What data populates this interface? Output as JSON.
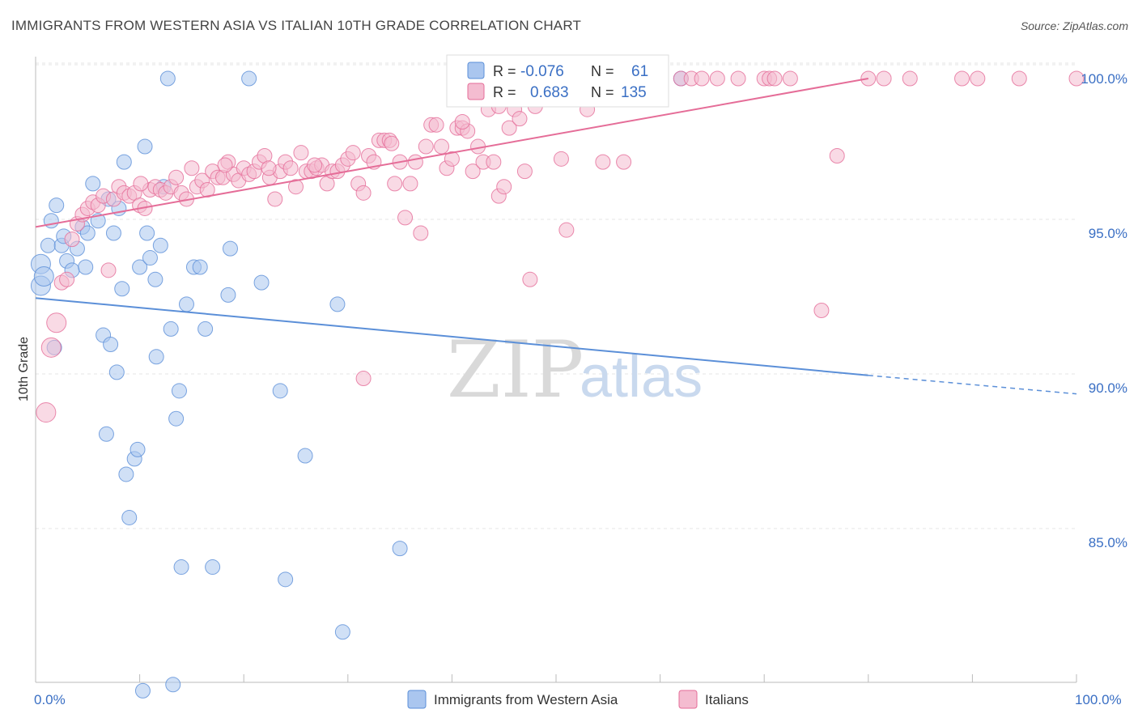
{
  "header": {
    "title": "IMMIGRANTS FROM WESTERN ASIA VS ITALIAN 10TH GRADE CORRELATION CHART",
    "source": "Source: ZipAtlas.com"
  },
  "watermark": {
    "zip": "ZIP",
    "atlas": "atlas"
  },
  "legend": {
    "r_label": "R =",
    "n_label": "N =",
    "series": [
      {
        "r": "-0.076",
        "n": "61"
      },
      {
        "r": "0.683",
        "n": "135"
      }
    ]
  },
  "chart_data": {
    "type": "scatter",
    "title": "IMMIGRANTS FROM WESTERN ASIA VS ITALIAN 10TH GRADE CORRELATION CHART",
    "xlabel": "",
    "ylabel": "10th Grade",
    "xlim": [
      0,
      100
    ],
    "ylim": [
      80.0,
      100.5
    ],
    "x_tick_labels": [
      "0.0%",
      "100.0%"
    ],
    "y_ticks": [
      85,
      90,
      95,
      100
    ],
    "y_tick_labels": [
      "85.0%",
      "90.0%",
      "95.0%",
      "100.0%"
    ],
    "grid": true,
    "legend_position": "top-center",
    "series": [
      {
        "name": "Immigrants from Western Asia",
        "color": "#5b8fd8",
        "fill": "#aac6ef",
        "r": -0.076,
        "n": 61,
        "trend": {
          "x0": 0,
          "y0": 92.9,
          "x1": 80,
          "y1": 90.4,
          "dash_to_x": 100,
          "dash_to_y": 89.8
        },
        "points": [
          [
            0.5,
            94.0
          ],
          [
            0.5,
            93.3
          ],
          [
            0.8,
            93.6
          ],
          [
            1.2,
            94.6
          ],
          [
            1.5,
            95.4
          ],
          [
            1.8,
            91.3
          ],
          [
            2.0,
            95.9
          ],
          [
            2.5,
            94.6
          ],
          [
            2.7,
            94.9
          ],
          [
            3.0,
            94.1
          ],
          [
            3.5,
            93.8
          ],
          [
            4.0,
            94.5
          ],
          [
            4.5,
            95.2
          ],
          [
            4.8,
            93.9
          ],
          [
            5.0,
            95.0
          ],
          [
            5.5,
            96.6
          ],
          [
            6.0,
            95.4
          ],
          [
            6.5,
            91.7
          ],
          [
            7.0,
            96.1
          ],
          [
            7.2,
            91.4
          ],
          [
            7.5,
            95.0
          ],
          [
            7.8,
            90.5
          ],
          [
            8.0,
            95.8
          ],
          [
            8.3,
            93.2
          ],
          [
            8.5,
            97.3
          ],
          [
            8.7,
            87.2
          ],
          [
            9.0,
            85.8
          ],
          [
            9.5,
            87.7
          ],
          [
            10.0,
            93.9
          ],
          [
            10.5,
            97.8
          ],
          [
            10.7,
            95.0
          ],
          [
            11.0,
            94.2
          ],
          [
            11.5,
            93.5
          ],
          [
            12.0,
            94.6
          ],
          [
            12.3,
            96.5
          ],
          [
            12.7,
            100.0
          ],
          [
            13.0,
            91.9
          ],
          [
            13.5,
            89.0
          ],
          [
            13.8,
            89.9
          ],
          [
            14.0,
            84.2
          ],
          [
            14.5,
            92.7
          ],
          [
            15.2,
            93.9
          ],
          [
            15.8,
            93.9
          ],
          [
            16.3,
            91.9
          ],
          [
            17.0,
            84.2
          ],
          [
            18.5,
            93.0
          ],
          [
            18.7,
            94.5
          ],
          [
            20.5,
            100.0
          ],
          [
            21.7,
            93.4
          ],
          [
            23.5,
            89.9
          ],
          [
            24.0,
            83.8
          ],
          [
            25.9,
            87.8
          ],
          [
            29.0,
            92.7
          ],
          [
            29.5,
            82.1
          ],
          [
            35.0,
            84.8
          ],
          [
            62.0,
            100.0
          ],
          [
            10.3,
            80.2
          ],
          [
            13.2,
            80.4
          ],
          [
            9.8,
            88.0
          ],
          [
            6.8,
            88.5
          ],
          [
            11.6,
            91.0
          ]
        ]
      },
      {
        "name": "Italians",
        "color": "#e56d98",
        "fill": "#f4bcd0",
        "r": 0.683,
        "n": 135,
        "trend": {
          "x0": 0,
          "y0": 95.2,
          "x1": 80,
          "y1": 100.0
        },
        "points": [
          [
            1.0,
            89.2
          ],
          [
            1.5,
            91.3
          ],
          [
            2.0,
            92.1
          ],
          [
            2.5,
            93.4
          ],
          [
            3.0,
            93.5
          ],
          [
            3.5,
            94.8
          ],
          [
            4.0,
            95.3
          ],
          [
            4.5,
            95.6
          ],
          [
            5.0,
            95.8
          ],
          [
            5.5,
            96.0
          ],
          [
            6.0,
            95.9
          ],
          [
            6.5,
            96.2
          ],
          [
            7.0,
            93.8
          ],
          [
            7.5,
            96.1
          ],
          [
            8.0,
            96.5
          ],
          [
            8.5,
            96.3
          ],
          [
            9.0,
            96.2
          ],
          [
            9.5,
            96.3
          ],
          [
            10.0,
            95.9
          ],
          [
            10.5,
            95.8
          ],
          [
            11.0,
            96.4
          ],
          [
            11.5,
            96.5
          ],
          [
            12.0,
            96.4
          ],
          [
            12.5,
            96.3
          ],
          [
            13.0,
            96.5
          ],
          [
            13.5,
            96.8
          ],
          [
            14.0,
            96.3
          ],
          [
            14.5,
            96.1
          ],
          [
            15.0,
            97.1
          ],
          [
            15.5,
            96.5
          ],
          [
            16.0,
            96.7
          ],
          [
            16.5,
            96.4
          ],
          [
            17.0,
            97.0
          ],
          [
            17.5,
            96.8
          ],
          [
            18.0,
            96.8
          ],
          [
            18.5,
            97.3
          ],
          [
            19.0,
            96.9
          ],
          [
            19.5,
            96.7
          ],
          [
            20.0,
            97.1
          ],
          [
            20.5,
            96.9
          ],
          [
            21.0,
            97.0
          ],
          [
            21.5,
            97.3
          ],
          [
            22.0,
            97.5
          ],
          [
            22.5,
            96.8
          ],
          [
            23.0,
            96.1
          ],
          [
            23.5,
            97.0
          ],
          [
            24.0,
            97.3
          ],
          [
            24.5,
            97.1
          ],
          [
            25.0,
            96.5
          ],
          [
            25.5,
            97.6
          ],
          [
            26.0,
            97.0
          ],
          [
            26.5,
            97.0
          ],
          [
            27.0,
            97.1
          ],
          [
            27.5,
            97.2
          ],
          [
            28.0,
            96.6
          ],
          [
            28.5,
            97.0
          ],
          [
            29.0,
            97.0
          ],
          [
            29.5,
            97.2
          ],
          [
            30.0,
            97.4
          ],
          [
            30.5,
            97.6
          ],
          [
            31.0,
            96.6
          ],
          [
            31.5,
            96.3
          ],
          [
            32.0,
            97.5
          ],
          [
            32.5,
            97.3
          ],
          [
            33.0,
            98.0
          ],
          [
            33.5,
            98.0
          ],
          [
            34.0,
            98.0
          ],
          [
            34.5,
            96.6
          ],
          [
            35.0,
            97.3
          ],
          [
            35.5,
            95.5
          ],
          [
            36.0,
            96.6
          ],
          [
            36.5,
            97.3
          ],
          [
            37.0,
            95.0
          ],
          [
            37.5,
            97.8
          ],
          [
            38.0,
            98.5
          ],
          [
            38.5,
            98.5
          ],
          [
            39.0,
            97.8
          ],
          [
            39.5,
            97.1
          ],
          [
            40.0,
            97.4
          ],
          [
            40.5,
            98.4
          ],
          [
            41.0,
            98.4
          ],
          [
            41.5,
            98.3
          ],
          [
            42.0,
            97.0
          ],
          [
            42.5,
            97.8
          ],
          [
            43.0,
            97.3
          ],
          [
            43.5,
            99.0
          ],
          [
            44.0,
            97.3
          ],
          [
            44.5,
            96.2
          ],
          [
            45.0,
            96.5
          ],
          [
            45.5,
            98.4
          ],
          [
            46.0,
            99.0
          ],
          [
            46.5,
            98.7
          ],
          [
            47.0,
            97.0
          ],
          [
            47.5,
            93.5
          ],
          [
            48.0,
            99.1
          ],
          [
            49.0,
            100.0
          ],
          [
            49.5,
            100.0
          ],
          [
            50.5,
            97.4
          ],
          [
            51.0,
            95.1
          ],
          [
            52.0,
            100.0
          ],
          [
            53.0,
            99.0
          ],
          [
            54.5,
            97.3
          ],
          [
            55.0,
            100.0
          ],
          [
            56.0,
            100.0
          ],
          [
            56.5,
            97.3
          ],
          [
            57.5,
            100.0
          ],
          [
            58.0,
            100.0
          ],
          [
            58.5,
            100.0
          ],
          [
            60.0,
            100.0
          ],
          [
            62.0,
            100.0
          ],
          [
            63.0,
            100.0
          ],
          [
            64.0,
            100.0
          ],
          [
            65.5,
            100.0
          ],
          [
            67.5,
            100.0
          ],
          [
            70.0,
            100.0
          ],
          [
            70.5,
            100.0
          ],
          [
            71.0,
            100.0
          ],
          [
            72.5,
            100.0
          ],
          [
            75.5,
            92.5
          ],
          [
            77.0,
            97.5
          ],
          [
            80.0,
            100.0
          ],
          [
            81.5,
            100.0
          ],
          [
            84.0,
            100.0
          ],
          [
            89.0,
            100.0
          ],
          [
            90.5,
            100.0
          ],
          [
            94.5,
            100.0
          ],
          [
            100.0,
            100.0
          ],
          [
            31.5,
            90.3
          ],
          [
            41.0,
            98.6
          ],
          [
            44.5,
            99.1
          ],
          [
            34.2,
            97.9
          ],
          [
            26.8,
            97.2
          ],
          [
            22.4,
            97.1
          ],
          [
            18.2,
            97.2
          ],
          [
            10.1,
            96.6
          ]
        ]
      }
    ]
  },
  "bottom_legend": [
    {
      "label": "Immigrants from Western Asia"
    },
    {
      "label": "Italians"
    }
  ]
}
